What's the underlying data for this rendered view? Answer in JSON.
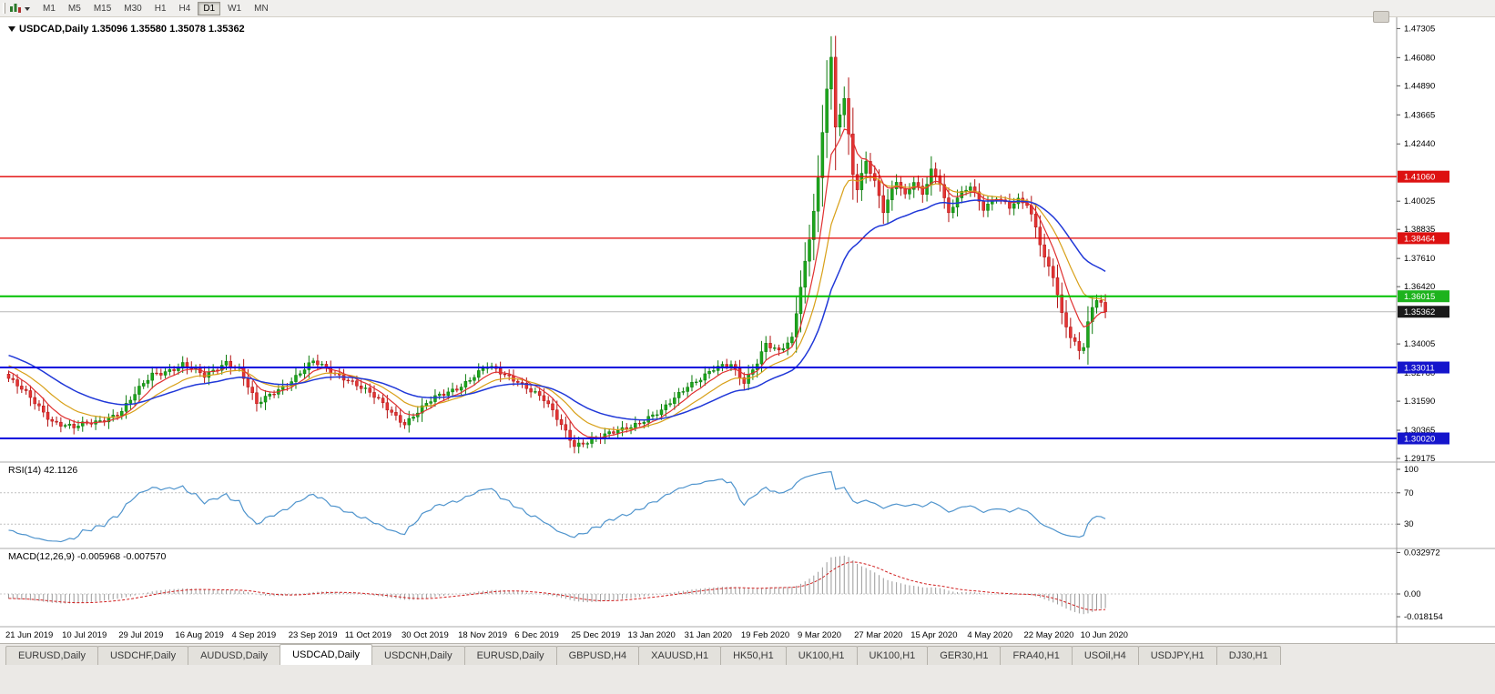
{
  "toolbar": {
    "timeframes": [
      "M1",
      "M5",
      "M15",
      "M30",
      "H1",
      "H4",
      "D1",
      "W1",
      "MN"
    ],
    "active": "D1"
  },
  "chart": {
    "title": "USDCAD,Daily 1.35096 1.35580 1.35078 1.35362",
    "price_axis": {
      "ticks": [
        "1.47305",
        "1.46080",
        "1.44890",
        "1.43665",
        "1.42440",
        "1.40025",
        "1.38835",
        "1.37610",
        "1.36420",
        "1.34005",
        "1.32780",
        "1.31590",
        "1.30365",
        "1.29175"
      ],
      "badges": [
        {
          "text": "1.41060",
          "color": "#dd1111"
        },
        {
          "text": "1.38464",
          "color": "#dd1111"
        },
        {
          "text": "1.36015",
          "color": "#1db31d"
        },
        {
          "text": "1.35362",
          "color": "#1a1a1a"
        },
        {
          "text": "1.33011",
          "color": "#1515cc"
        },
        {
          "text": "1.30020",
          "color": "#1515cc"
        }
      ]
    }
  },
  "rsi": {
    "text": "RSI(14) 42.1126",
    "axis_labels": [
      "100",
      "70",
      "30"
    ]
  },
  "macd": {
    "text": "MACD(12,26,9) -0.005968 -0.007570",
    "axis_labels": [
      "0.032972",
      "0.00",
      "-0.018154"
    ]
  },
  "tabs": {
    "items": [
      "EURUSD,Daily",
      "USDCHF,Daily",
      "AUDUSD,Daily",
      "USDCAD,Daily",
      "USDCNH,Daily",
      "EURUSD,Daily",
      "GBPUSD,H4",
      "XAUUSD,H1",
      "HK50,H1",
      "UK100,H1",
      "UK100,H1",
      "GER30,H1",
      "FRA40,H1",
      "USOil,H4",
      "USDJPY,H1",
      "DJ30,H1"
    ],
    "active_index": 3
  },
  "chart_data": {
    "type": "candlestick",
    "symbol": "USDCAD",
    "timeframe": "Daily",
    "bars": 253,
    "bars_per_label": 13,
    "y_range": [
      1.291,
      1.4755
    ],
    "x_labels": [
      "21 Jun 2019",
      "10 Jul 2019",
      "29 Jul 2019",
      "16 Aug 2019",
      "4 Sep 2019",
      "23 Sep 2019",
      "11 Oct 2019",
      "30 Oct 2019",
      "18 Nov 2019",
      "6 Dec 2019",
      "25 Dec 2019",
      "13 Jan 2020",
      "31 Jan 2020",
      "19 Feb 2020",
      "9 Mar 2020",
      "27 Mar 2020",
      "15 Apr 2020",
      "4 May 2020",
      "22 May 2020",
      "10 Jun 2020"
    ],
    "ohlc_current": {
      "open": 1.35096,
      "high": 1.3558,
      "low": 1.35078,
      "close": 1.35362
    },
    "close_anchors": [
      [
        0,
        1.3255
      ],
      [
        5,
        1.317
      ],
      [
        10,
        1.308
      ],
      [
        15,
        1.3045
      ],
      [
        20,
        1.307
      ],
      [
        26,
        1.312
      ],
      [
        33,
        1.327
      ],
      [
        40,
        1.3315
      ],
      [
        45,
        1.326
      ],
      [
        50,
        1.333
      ],
      [
        53,
        1.3295
      ],
      [
        57,
        1.314
      ],
      [
        61,
        1.32
      ],
      [
        65,
        1.325
      ],
      [
        70,
        1.332
      ],
      [
        78,
        1.3255
      ],
      [
        85,
        1.316
      ],
      [
        91,
        1.307
      ],
      [
        98,
        1.317
      ],
      [
        104,
        1.323
      ],
      [
        110,
        1.33
      ],
      [
        117,
        1.325
      ],
      [
        123,
        1.316
      ],
      [
        127,
        1.306
      ],
      [
        130,
        1.298
      ],
      [
        136,
        1.3
      ],
      [
        143,
        1.306
      ],
      [
        150,
        1.311
      ],
      [
        156,
        1.323
      ],
      [
        162,
        1.329
      ],
      [
        166,
        1.331
      ],
      [
        169,
        1.3245
      ],
      [
        172,
        1.333
      ],
      [
        174,
        1.34
      ],
      [
        177,
        1.336
      ],
      [
        180,
        1.342
      ],
      [
        182,
        1.365
      ],
      [
        184,
        1.385
      ],
      [
        186,
        1.41
      ],
      [
        188,
        1.448
      ],
      [
        189,
        1.46
      ],
      [
        190,
        1.43
      ],
      [
        192,
        1.443
      ],
      [
        194,
        1.412
      ],
      [
        195,
        1.406
      ],
      [
        197,
        1.418
      ],
      [
        199,
        1.409
      ],
      [
        201,
        1.396
      ],
      [
        204,
        1.408
      ],
      [
        206,
        1.402
      ],
      [
        208,
        1.409
      ],
      [
        210,
        1.404
      ],
      [
        212,
        1.414
      ],
      [
        214,
        1.408
      ],
      [
        216,
        1.394
      ],
      [
        218,
        1.401
      ],
      [
        221,
        1.407
      ],
      [
        224,
        1.398
      ],
      [
        227,
        1.402
      ],
      [
        230,
        1.397
      ],
      [
        232,
        1.4
      ],
      [
        234,
        1.399
      ],
      [
        236,
        1.39
      ],
      [
        238,
        1.377
      ],
      [
        240,
        1.369
      ],
      [
        242,
        1.352
      ],
      [
        244,
        1.342
      ],
      [
        246,
        1.337
      ],
      [
        247,
        1.339
      ],
      [
        248,
        1.349
      ],
      [
        249,
        1.356
      ],
      [
        250,
        1.36
      ],
      [
        251,
        1.358
      ],
      [
        252,
        1.35362
      ]
    ],
    "prehistory": {
      "bars": 45,
      "from": 1.352,
      "to": 1.328
    },
    "horizontal_lines": [
      {
        "price": 1.4106,
        "color": "#e00000",
        "width": 1.3
      },
      {
        "price": 1.38464,
        "color": "#e00000",
        "width": 1.3
      },
      {
        "price": 1.36015,
        "color": "#00c000",
        "width": 2
      },
      {
        "price": 1.33011,
        "color": "#0000dd",
        "width": 2
      },
      {
        "price": 1.3002,
        "color": "#0000dd",
        "width": 2
      }
    ],
    "current_price_line": {
      "price": 1.35362,
      "color": "#b8b8b8",
      "width": 1
    },
    "moving_averages": [
      {
        "name": "ema-fast",
        "period": 7,
        "color": "#e03030"
      },
      {
        "name": "ema-medium",
        "period": 15,
        "color": "#d8a018"
      },
      {
        "name": "ema-slow",
        "period": 32,
        "color": "#2038d8"
      }
    ],
    "rsi": {
      "period": 14,
      "last": 42.1126,
      "levels": [
        70,
        30
      ],
      "color": "#4f94cd"
    },
    "macd": {
      "fast": 12,
      "slow": 26,
      "signal": 9,
      "last_main": -0.005968,
      "last_signal": -0.00757,
      "histogram_color": "#9a9a9a",
      "signal_color": "#d02020"
    },
    "candle_colors": {
      "up_fill": "#1ca61c",
      "up_stroke": "#0b7a0b",
      "down_fill": "#e33434",
      "down_stroke": "#b31212"
    }
  }
}
